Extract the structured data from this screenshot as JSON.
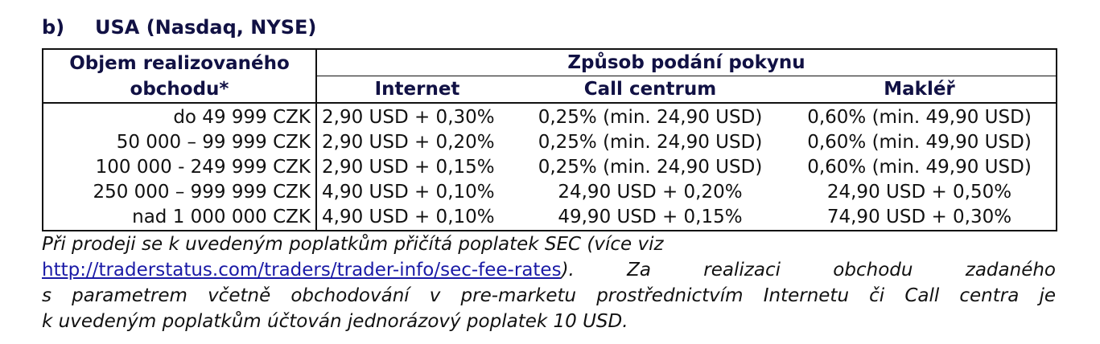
{
  "heading": {
    "number": "b)",
    "title": "USA (Nasdaq, NYSE)"
  },
  "table": {
    "col_header_left": "Objem realizovaného obchodu*",
    "group_header": "Způsob podání pokynu",
    "sub_headers": [
      "Internet",
      "Call centrum",
      "Makléř"
    ],
    "rows": [
      {
        "range": "do 49 999 CZK",
        "internet": "2,90 USD + 0,30%",
        "call": "0,25% (min. 24,90 USD)",
        "broker": "0,60% (min. 49,90 USD)"
      },
      {
        "range": "50 000 – 99 999 CZK",
        "internet": "2,90 USD + 0,20%",
        "call": "0,25% (min. 24,90 USD)",
        "broker": "0,60% (min. 49,90 USD)"
      },
      {
        "range": "100 000 - 249 999 CZK",
        "internet": "2,90 USD + 0,15%",
        "call": "0,25% (min. 24,90 USD)",
        "broker": "0,60% (min. 49,90 USD)"
      },
      {
        "range": "250 000 – 999 999 CZK",
        "internet": "4,90 USD + 0,10%",
        "call": "24,90 USD + 0,20%",
        "broker": "24,90 USD + 0,50%"
      },
      {
        "range": "nad 1 000 000 CZK",
        "internet": "4,90 USD + 0,10%",
        "call": "49,90 USD + 0,15%",
        "broker": "74,90 USD + 0,30%"
      }
    ]
  },
  "note": {
    "line1": "Při prodeji se k uvedeným poplatkům přičítá poplatek SEC (více viz",
    "link": "http://traderstatus.com/traders/trader-info/sec-fee-rates",
    "after_link": "). Za realizaci obchodu zadaného",
    "line3": "s parametrem včetně obchodování v pre-marketu prostřednictvím Internetu či Call centra je",
    "line4": "k uvedeným poplatkům účtován jednorázový poplatek 10 USD."
  }
}
